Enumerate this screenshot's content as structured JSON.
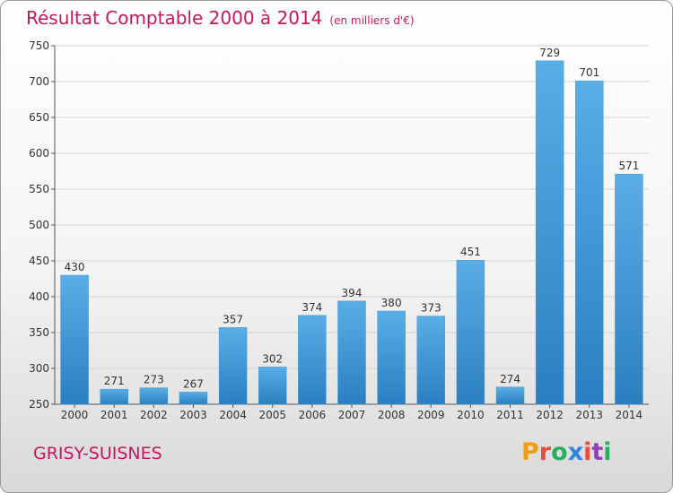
{
  "header": {
    "title": "Résultat Comptable 2000 à 2014",
    "unit": "(en milliers d'€)"
  },
  "footer": {
    "commune": "GRISY-SUISNES",
    "logo_letters": [
      {
        "ch": "P",
        "color": "#f39c12"
      },
      {
        "ch": "r",
        "color": "#e74c3c"
      },
      {
        "ch": "o",
        "color": "#27ae60"
      },
      {
        "ch": "x",
        "color": "#2e86de"
      },
      {
        "ch": "i",
        "color": "#e74c3c"
      },
      {
        "ch": "t",
        "color": "#8e44ad"
      },
      {
        "ch": "i",
        "color": "#27ae60"
      }
    ]
  },
  "chart_data": {
    "type": "bar",
    "title": "Résultat Comptable 2000 à 2014",
    "unit": "(en milliers d'€)",
    "categories": [
      "2000",
      "2001",
      "2002",
      "2003",
      "2004",
      "2005",
      "2006",
      "2007",
      "2008",
      "2009",
      "2010",
      "2011",
      "2012",
      "2013",
      "2014"
    ],
    "values": [
      430,
      271,
      273,
      267,
      357,
      302,
      374,
      394,
      380,
      373,
      451,
      274,
      729,
      701,
      571
    ],
    "ylim": [
      250,
      750
    ],
    "yticks": [
      250,
      300,
      350,
      400,
      450,
      500,
      550,
      600,
      650,
      700,
      750
    ],
    "grid": true,
    "bar_color_top": "#5aaee6",
    "bar_color_bottom": "#2a7fc0",
    "title_color": "#c4185c"
  }
}
